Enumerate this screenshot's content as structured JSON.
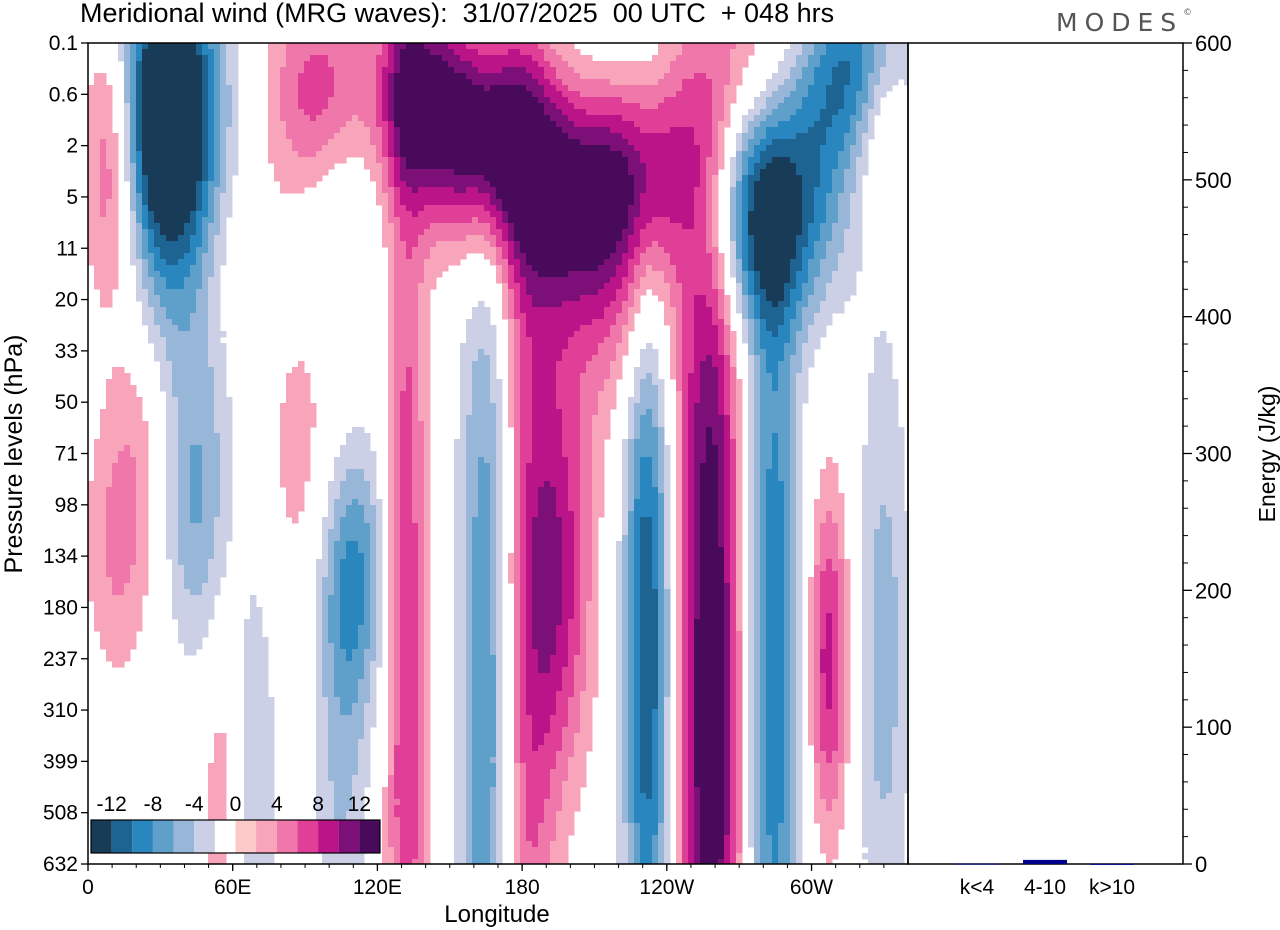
{
  "title": "Meridional wind (MRG waves):  31/07/2025  00 UTC  + 048 hrs",
  "logo": "MODES",
  "chart_data": [
    {
      "type": "heatmap",
      "title": "Meridional wind (MRG waves):  31/07/2025  00 UTC  + 048 hrs",
      "xlabel": "Longitude",
      "ylabel": "Pressure levels (hPa)",
      "x_ticks": [
        "0",
        "60E",
        "120E",
        "180",
        "120W",
        "60W"
      ],
      "x_tick_values": [
        0,
        60,
        120,
        180,
        240,
        300
      ],
      "xlim": [
        0,
        340
      ],
      "y_ticks": [
        "0.1",
        "0.6",
        "2",
        "5",
        "11",
        "20",
        "33",
        "50",
        "71",
        "98",
        "134",
        "180",
        "237",
        "310",
        "399",
        "508",
        "632"
      ],
      "colorbar": {
        "labels": [
          "-12",
          "-8",
          "-4",
          "0",
          "4",
          "8",
          "12"
        ],
        "levels": [
          -14,
          -12,
          -10,
          -8,
          -6,
          -4,
          -2,
          2,
          4,
          6,
          8,
          10,
          12,
          14
        ],
        "colors": [
          "#183c58",
          "#1d6493",
          "#2a86bf",
          "#5fa0cb",
          "#98b6d8",
          "#ccd0e6",
          "#ffffff",
          "#fcc9c9",
          "#f8a4bb",
          "#f077aa",
          "#df3f96",
          "#bb1488",
          "#7d0f78",
          "#4a0a5c"
        ]
      },
      "features": [
        {
          "lon": 38,
          "lev": 2.0,
          "value": -12,
          "width": 14,
          "depth": 5.0
        },
        {
          "lon": 30,
          "lev": 1.0,
          "value": -10,
          "width": 12,
          "depth": 3.5
        },
        {
          "lon": 10,
          "lev": 2.5,
          "value": 7,
          "width": 8,
          "depth": 3.0
        },
        {
          "lon": 95,
          "lev": 0.8,
          "value": 8,
          "width": 14,
          "depth": 2.5
        },
        {
          "lon": 160,
          "lev": 1.0,
          "value": 10,
          "width": 18,
          "depth": 2.2
        },
        {
          "lon": 135,
          "lev": 0.5,
          "value": 9,
          "width": 12,
          "depth": 2.2
        },
        {
          "lon": 200,
          "lev": 5.0,
          "value": 9,
          "width": 22,
          "depth": 2.5
        },
        {
          "lon": 230,
          "lev": 2.5,
          "value": 9,
          "width": 22,
          "depth": 2.5
        },
        {
          "lon": 170,
          "lev": 2.2,
          "value": 6,
          "width": 18,
          "depth": 2.0
        },
        {
          "lon": 280,
          "lev": 0.3,
          "value": 6,
          "width": 14,
          "depth": 2.2
        },
        {
          "lon": 215,
          "lev": 0.4,
          "value": -4,
          "width": 16,
          "depth": 2.0
        },
        {
          "lon": 275,
          "lev": 3.5,
          "value": -9,
          "width": 14,
          "depth": 2.5
        },
        {
          "lon": 300,
          "lev": 2.0,
          "value": -6,
          "width": 12,
          "depth": 2.2
        },
        {
          "lon": 320,
          "lev": 0.2,
          "value": -10,
          "width": 16,
          "depth": 2.0
        },
        {
          "lon": 285,
          "lev": 11,
          "value": -6,
          "width": 20,
          "depth": 2.0
        },
        {
          "lon": 330,
          "lev": 1.0,
          "value": 6,
          "width": 8,
          "depth": 2.0
        },
        {
          "lon": 215,
          "lev": 20,
          "value": 4,
          "width": 28,
          "depth": 3.5
        },
        {
          "lon": 100,
          "lev": 5.0,
          "value": -4,
          "width": 14,
          "depth": 2.0
        },
        {
          "lon": 50,
          "lev": 12,
          "value": 2.5,
          "width": 25,
          "depth": 2.0
        },
        {
          "lon": 45,
          "lev": 100,
          "value": -6,
          "width": 10,
          "depth": 3.5
        },
        {
          "lon": 12,
          "lev": 130,
          "value": 4,
          "width": 10,
          "depth": 3.0
        },
        {
          "lon": 22,
          "lev": 60,
          "value": 3,
          "width": 10,
          "depth": 3.0
        },
        {
          "lon": 90,
          "lev": 75,
          "value": 3,
          "width": 12,
          "depth": 3.5
        },
        {
          "lon": 110,
          "lev": 150,
          "value": -8,
          "width": 10,
          "depth": 3.0
        },
        {
          "lon": 132,
          "lev": 250,
          "value": 8,
          "width": 6,
          "depth": 15.0
        },
        {
          "lon": 165,
          "lev": 280,
          "value": -8,
          "width": 8,
          "depth": 15.0
        },
        {
          "lon": 182,
          "lev": 350,
          "value": 6,
          "width": 8,
          "depth": 15.0
        },
        {
          "lon": 195,
          "lev": 150,
          "value": 9,
          "width": 10,
          "depth": 5.0
        },
        {
          "lon": 232,
          "lev": 220,
          "value": -12,
          "width": 7,
          "depth": 10.0
        },
        {
          "lon": 258,
          "lev": 300,
          "value": 15,
          "width": 9,
          "depth": 14.0
        },
        {
          "lon": 284,
          "lev": 230,
          "value": -10,
          "width": 8,
          "depth": 12.0
        },
        {
          "lon": 307,
          "lev": 240,
          "value": 9,
          "width": 6,
          "depth": 4.0
        },
        {
          "lon": 330,
          "lev": 230,
          "value": -5,
          "width": 8,
          "depth": 8.0
        },
        {
          "lon": 105,
          "lev": 450,
          "value": -4,
          "width": 8,
          "depth": 6.0
        },
        {
          "lon": 70,
          "lev": 450,
          "value": -4,
          "width": 6,
          "depth": 6.0
        },
        {
          "lon": 55,
          "lev": 500,
          "value": 3,
          "width": 6,
          "depth": 5.0
        }
      ]
    },
    {
      "type": "bar",
      "categories": [
        "k<4",
        "4-10",
        "k>10"
      ],
      "values": [
        0.3,
        3,
        0.1
      ],
      "ylabel": "Energy (J/kg)",
      "ylim": [
        0,
        600
      ],
      "y_ticks": [
        "0",
        "100",
        "200",
        "300",
        "400",
        "500",
        "600"
      ],
      "colors": [
        "#00008b",
        "#00008b",
        "#00008b"
      ]
    }
  ]
}
